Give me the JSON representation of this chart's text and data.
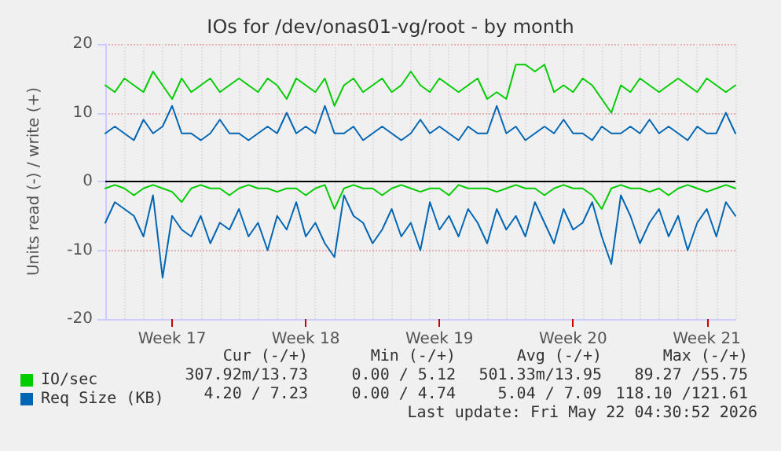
{
  "chart_data": {
    "type": "line",
    "title": "IOs for /dev/onas01-vg/root - by month",
    "ylabel": "Units read (-) / write (+)",
    "categories": [
      null,
      null,
      null,
      null,
      null,
      null,
      null,
      "Week 17",
      null,
      null,
      null,
      null,
      null,
      null,
      null,
      null,
      null,
      null,
      null,
      null,
      null,
      "Week 18",
      null,
      null,
      null,
      null,
      null,
      null,
      null,
      null,
      null,
      null,
      null,
      null,
      null,
      "Week 19",
      null,
      null,
      null,
      null,
      null,
      null,
      null,
      null,
      null,
      null,
      null,
      null,
      null,
      "Week 20",
      null,
      null,
      null,
      null,
      null,
      null,
      null,
      null,
      null,
      null,
      null,
      null,
      null,
      "Week 21",
      null,
      null,
      null
    ],
    "series": [
      {
        "name": "IO/sec",
        "color": "#00cc00",
        "values": [
          14,
          13,
          15,
          14,
          13,
          16,
          14,
          12,
          15,
          13,
          14,
          15,
          13,
          14,
          15,
          14,
          13,
          15,
          14,
          12,
          15,
          14,
          13,
          15,
          11,
          14,
          15,
          13,
          14,
          15,
          13,
          14,
          16,
          14,
          13,
          15,
          14,
          13,
          14,
          15,
          12,
          13,
          12,
          17,
          17,
          16,
          17,
          13,
          14,
          13,
          15,
          14,
          12,
          10,
          14,
          13,
          15,
          14,
          13,
          14,
          15,
          14,
          13,
          15,
          14,
          13,
          14
        ]
      },
      {
        "color": "#00cc00",
        "values": [
          -1,
          -0.5,
          -1,
          -2,
          -1,
          -0.5,
          -1,
          -1.5,
          -3,
          -1,
          -0.5,
          -1,
          -1,
          -2,
          -1,
          -0.5,
          -1,
          -1,
          -1.5,
          -1,
          -1,
          -2,
          -1,
          -0.5,
          -4,
          -1,
          -0.5,
          -1,
          -1,
          -2,
          -1,
          -0.5,
          -1,
          -1.5,
          -1,
          -1,
          -2,
          -0.5,
          -1,
          -1,
          -1,
          -1.5,
          -1,
          -0.5,
          -1,
          -1,
          -2,
          -1,
          -0.5,
          -1,
          -1,
          -2,
          -4,
          -1,
          -0.5,
          -1,
          -1,
          -1.5,
          -1,
          -2,
          -1,
          -0.5,
          -1,
          -1.5,
          -1,
          -0.5,
          -1
        ]
      },
      {
        "name": "Req Size (KB)",
        "color": "#0066b3",
        "values": [
          7,
          8,
          7,
          6,
          9,
          7,
          8,
          11,
          7,
          7,
          6,
          7,
          9,
          7,
          7,
          6,
          7,
          8,
          7,
          10,
          7,
          8,
          7,
          11,
          7,
          7,
          8,
          6,
          7,
          8,
          7,
          6,
          7,
          9,
          7,
          8,
          7,
          6,
          8,
          7,
          7,
          11,
          7,
          8,
          6,
          7,
          8,
          7,
          9,
          7,
          7,
          6,
          8,
          7,
          7,
          8,
          7,
          9,
          7,
          8,
          7,
          6,
          8,
          7,
          7,
          10,
          7
        ]
      },
      {
        "color": "#0066b3",
        "values": [
          -6,
          -3,
          -4,
          -5,
          -8,
          -2,
          -14,
          -5,
          -7,
          -8,
          -5,
          -9,
          -6,
          -7,
          -4,
          -8,
          -6,
          -10,
          -5,
          -7,
          -3,
          -8,
          -6,
          -9,
          -11,
          -2,
          -5,
          -6,
          -9,
          -7,
          -4,
          -8,
          -6,
          -10,
          -3,
          -7,
          -5,
          -8,
          -4,
          -6,
          -9,
          -4,
          -7,
          -5,
          -8,
          -3,
          -6,
          -9,
          -4,
          -7,
          -6,
          -3,
          -8,
          -12,
          -2,
          -5,
          -9,
          -6,
          -4,
          -8,
          -5,
          -10,
          -6,
          -4,
          -8,
          -3,
          -5
        ]
      }
    ],
    "ylim": [
      -20,
      20
    ],
    "yticks": [
      -20,
      -10,
      0,
      10,
      20
    ],
    "grid": true,
    "legend": "bottom left",
    "marker": "none",
    "line_style": "solid",
    "ref_lines": [
      {
        "axis": "y",
        "value": 0,
        "color": "#000000"
      }
    ],
    "annotations": [
      "Cur (-/+)",
      "Min (-/+)",
      "Avg (-/+)",
      "Max (-/+)",
      "307.92m/13.73",
      "0.00 / 5.12",
      "501.33m/13.95",
      "89.27 /55.75",
      "4.20 / 7.23",
      "0.00 / 4.74",
      "5.04 / 7.09",
      "118.10 /121.61",
      "Last update: Fri May 22 04:30:52 2026"
    ]
  }
}
